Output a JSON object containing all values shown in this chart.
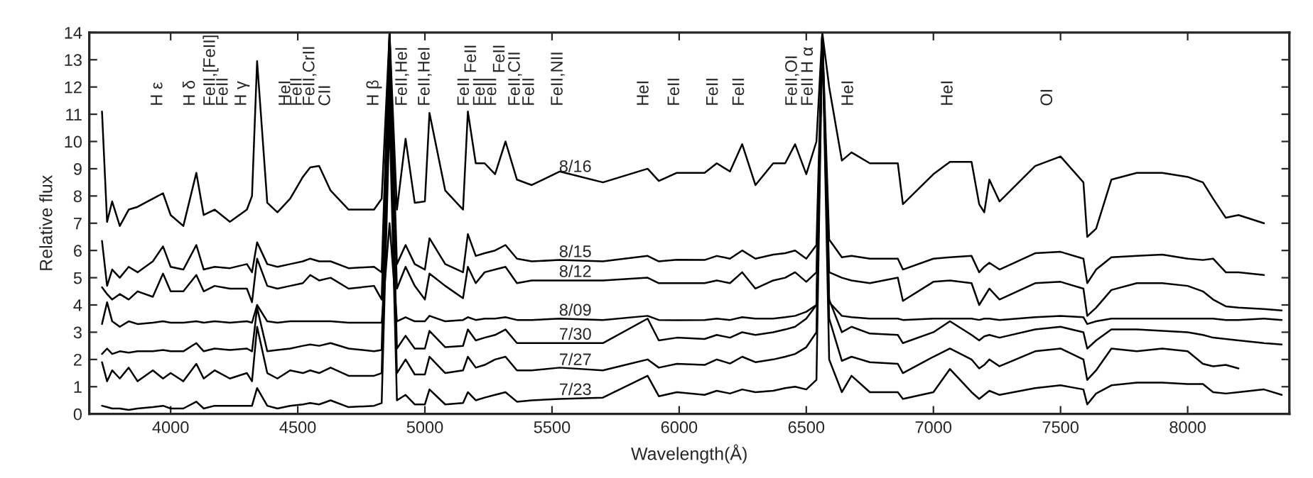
{
  "chart_data": {
    "type": "line",
    "xlabel": "Wavelength(Å)",
    "ylabel": "Relative flux",
    "x": [
      3730,
      3750,
      3770,
      3800,
      3835,
      3870,
      3930,
      3970,
      4000,
      4050,
      4101,
      4130,
      4173,
      4233,
      4300,
      4320,
      4340,
      4380,
      4420,
      4470,
      4520,
      4549,
      4584,
      4629,
      4700,
      4800,
      4830,
      4861,
      4890,
      4924,
      4960,
      5000,
      5018,
      5080,
      5150,
      5169,
      5200,
      5235,
      5276,
      5317,
      5362,
      5420,
      5530,
      5700,
      5876,
      5920,
      5991,
      6100,
      6148,
      6200,
      6248,
      6300,
      6370,
      6417,
      6456,
      6500,
      6540,
      6563,
      6590,
      6640,
      6678,
      6750,
      6860,
      6880,
      7000,
      7065,
      7150,
      7180,
      7200,
      7220,
      7260,
      7400,
      7500,
      7590,
      7605,
      7640,
      7700,
      7800,
      7900,
      8000,
      8060,
      8100,
      8150,
      8200,
      8300,
      8370
    ],
    "xlim": [
      3680,
      8400
    ],
    "ylim": [
      0,
      14
    ],
    "xticks": [
      4000,
      4500,
      5000,
      5500,
      6000,
      6500,
      7000,
      7500,
      8000
    ],
    "yticks": [
      0,
      1,
      2,
      3,
      4,
      5,
      6,
      7,
      8,
      9,
      10,
      11,
      12,
      13,
      14
    ],
    "grid": false,
    "line_style": "solid",
    "marker": "none",
    "series": [
      {
        "name": "7/23",
        "color": "#000000",
        "values": [
          0.3,
          0.25,
          0.2,
          0.2,
          0.15,
          0.2,
          0.25,
          0.3,
          0.2,
          0.2,
          0.45,
          0.2,
          0.3,
          0.3,
          0.3,
          0.3,
          0.95,
          0.3,
          0.2,
          0.3,
          0.35,
          0.4,
          0.35,
          0.5,
          0.25,
          0.3,
          0.4,
          11,
          0.5,
          0.7,
          0.35,
          0.35,
          0.9,
          0.35,
          0.4,
          0.8,
          0.5,
          0.6,
          0.7,
          0.8,
          0.45,
          0.5,
          0.55,
          0.6,
          1.4,
          0.65,
          0.8,
          0.7,
          0.85,
          0.75,
          0.9,
          0.8,
          0.85,
          0.95,
          1.0,
          0.9,
          1.25,
          14,
          2,
          0.8,
          1.4,
          0.8,
          0.8,
          0.55,
          0.8,
          1.65,
          0.8,
          0.55,
          0.7,
          0.85,
          0.7,
          0.95,
          1.05,
          0.9,
          0.35,
          0.75,
          1.05,
          1.15,
          1.15,
          1.1,
          1.1,
          0.8,
          0.75,
          0.8,
          0.9,
          0.7
        ]
      },
      {
        "name": "7/27",
        "color": "#000000",
        "values": [
          1.9,
          1.2,
          1.6,
          1.3,
          1.7,
          1.2,
          1.6,
          1.3,
          1.5,
          1.2,
          1.84,
          1.3,
          1.6,
          1.3,
          1.5,
          1.2,
          3.2,
          1.5,
          1.3,
          1.6,
          1.5,
          1.6,
          1.5,
          1.7,
          1.4,
          1.4,
          1.5,
          12,
          1.5,
          2.0,
          1.45,
          1.45,
          2.1,
          1.5,
          1.6,
          2.1,
          1.7,
          1.8,
          2.0,
          2.1,
          1.6,
          1.6,
          1.7,
          1.6,
          2.0,
          1.7,
          1.84,
          1.8,
          2.0,
          1.85,
          2.1,
          1.9,
          2.0,
          2.1,
          2.2,
          2.45,
          3.0,
          14,
          3.5,
          1.95,
          2.1,
          1.9,
          1.84,
          1.5,
          2.1,
          2.4,
          2.0,
          1.67,
          1.8,
          2.0,
          1.75,
          2.3,
          2.4,
          2.0,
          1.25,
          1.6,
          2.4,
          2.3,
          2.4,
          2.3,
          1.84,
          1.75,
          1.8,
          1.67,
          null,
          null
        ]
      },
      {
        "name": "7/30",
        "color": "#000000",
        "values": [
          2.2,
          2.4,
          2.2,
          2.3,
          2.25,
          2.3,
          2.3,
          2.35,
          2.3,
          2.3,
          2.6,
          2.3,
          2.4,
          2.35,
          2.4,
          2.3,
          3.9,
          2.3,
          2.35,
          2.4,
          2.5,
          2.55,
          2.5,
          2.6,
          2.4,
          2.3,
          2.35,
          13,
          2.4,
          2.87,
          2.4,
          2.4,
          3.05,
          2.45,
          2.5,
          3.1,
          2.7,
          2.8,
          2.9,
          3.1,
          2.6,
          2.6,
          2.6,
          2.6,
          3.5,
          2.7,
          2.8,
          2.75,
          2.9,
          2.8,
          3.0,
          2.9,
          3.0,
          3.1,
          3.2,
          3.5,
          4.0,
          14,
          4.2,
          3.0,
          3.2,
          2.95,
          2.9,
          2.6,
          3.0,
          3.4,
          2.9,
          2.7,
          2.85,
          2.9,
          2.8,
          3.1,
          3.2,
          3.0,
          2.4,
          2.7,
          3.1,
          3.1,
          3.05,
          3.0,
          2.9,
          2.8,
          2.75,
          2.7,
          2.6,
          2.55
        ]
      },
      {
        "name": "8/09",
        "color": "#000000",
        "values": [
          3.3,
          4.1,
          3.4,
          3.2,
          3.4,
          3.3,
          3.35,
          3.4,
          3.35,
          3.35,
          3.4,
          3.35,
          3.4,
          3.35,
          3.4,
          3.35,
          4.0,
          3.4,
          3.35,
          3.4,
          3.4,
          3.4,
          3.4,
          3.4,
          3.35,
          3.35,
          3.35,
          7,
          3.4,
          3.55,
          3.4,
          3.4,
          3.6,
          3.4,
          3.45,
          3.55,
          3.45,
          3.5,
          3.5,
          3.55,
          3.45,
          3.45,
          3.5,
          3.45,
          3.6,
          3.45,
          3.44,
          3.45,
          3.5,
          3.45,
          3.55,
          3.5,
          3.5,
          3.55,
          3.6,
          3.75,
          4.0,
          14,
          4.1,
          3.6,
          3.55,
          3.5,
          3.5,
          3.45,
          3.5,
          3.5,
          3.5,
          3.45,
          3.5,
          3.5,
          3.45,
          3.55,
          3.6,
          3.55,
          3.3,
          3.4,
          3.5,
          3.5,
          3.5,
          3.5,
          3.5,
          3.5,
          3.45,
          3.45,
          3.5,
          3.45
        ]
      },
      {
        "name": "8/12",
        "color": "#000000",
        "values": [
          4.65,
          4.4,
          4.2,
          4.4,
          4.2,
          4.5,
          4.3,
          5.15,
          4.5,
          4.5,
          5.1,
          4.5,
          4.7,
          4.6,
          4.6,
          4.1,
          5.7,
          4.7,
          4.6,
          4.7,
          4.8,
          5.1,
          4.9,
          5.0,
          4.6,
          4.7,
          4.2,
          14,
          4.6,
          5.4,
          4.7,
          4.2,
          5.15,
          4.7,
          4.25,
          5.4,
          4.8,
          5.2,
          5.3,
          5.4,
          4.8,
          4.9,
          4.9,
          4.9,
          5.0,
          4.8,
          4.8,
          4.8,
          4.9,
          4.8,
          5.2,
          4.6,
          4.9,
          5.0,
          5.2,
          4.85,
          5.2,
          14,
          5.2,
          5.0,
          4.9,
          4.8,
          5.0,
          4.15,
          4.85,
          4.9,
          4.8,
          4.0,
          4.3,
          4.6,
          4.2,
          4.8,
          4.85,
          4.6,
          3.6,
          3.9,
          4.55,
          4.8,
          4.8,
          4.7,
          4.5,
          4.2,
          3.95,
          3.9,
          3.85,
          3.8
        ]
      },
      {
        "name": "8/15",
        "color": "#000000",
        "values": [
          6.35,
          4.7,
          5.3,
          5.0,
          5.4,
          5.2,
          5.6,
          6.15,
          5.4,
          5.3,
          6.2,
          5.3,
          5.4,
          5.35,
          5.5,
          5.2,
          6.3,
          5.5,
          5.4,
          5.5,
          5.6,
          5.7,
          5.6,
          5.6,
          5.35,
          5.4,
          5.2,
          14,
          5.5,
          6.2,
          5.5,
          5.3,
          6.45,
          5.5,
          5.2,
          6.6,
          5.8,
          5.9,
          6.0,
          6.2,
          5.7,
          5.6,
          5.65,
          5.6,
          5.8,
          5.6,
          5.66,
          5.65,
          5.8,
          5.7,
          6.0,
          5.7,
          5.85,
          5.9,
          6.0,
          5.7,
          6.2,
          14,
          6.4,
          5.75,
          5.8,
          5.7,
          5.7,
          5.3,
          5.7,
          5.75,
          5.8,
          5.2,
          5.4,
          5.55,
          5.3,
          5.9,
          5.95,
          5.7,
          4.8,
          5.3,
          5.75,
          5.8,
          5.85,
          5.7,
          5.65,
          5.7,
          5.2,
          5.2,
          5.1,
          null
        ]
      },
      {
        "name": "8/16",
        "color": "#000000",
        "values": [
          11.1,
          7.05,
          7.8,
          6.9,
          7.5,
          7.6,
          7.9,
          8.1,
          7.3,
          6.9,
          8.85,
          7.3,
          7.5,
          7.05,
          7.5,
          8.0,
          12.95,
          7.75,
          7.4,
          7.9,
          8.7,
          9.05,
          9.1,
          8.2,
          7.5,
          7.5,
          7.9,
          14,
          7.5,
          10.1,
          7.75,
          7.8,
          11.05,
          8.2,
          7.5,
          11.1,
          9.2,
          9.2,
          8.8,
          10.0,
          8.6,
          8.4,
          8.9,
          8.5,
          9.0,
          8.55,
          8.85,
          8.85,
          9.2,
          8.9,
          9.9,
          8.4,
          9.2,
          9.2,
          9.9,
          8.8,
          10.0,
          14,
          12,
          9.3,
          9.6,
          9.2,
          9.2,
          7.7,
          8.8,
          9.25,
          9.25,
          7.7,
          7.4,
          8.6,
          7.8,
          9.1,
          9.45,
          8.5,
          6.5,
          6.8,
          8.6,
          8.85,
          8.85,
          8.7,
          8.5,
          7.9,
          7.2,
          7.3,
          7.0,
          null
        ]
      }
    ],
    "annotations": [
      "H ε",
      "H δ",
      "FeII,[FeII]",
      "FeII",
      "H γ",
      "HeI",
      "FeII",
      "FeII,CrII",
      "CII",
      "H β",
      "FeII,HeI",
      "FeII,HeI",
      "FeII",
      "FeII",
      "FeII",
      "FeII",
      "FeII",
      "FeII,CII",
      "FeII",
      "FeII,NII",
      "HeI",
      "FeII",
      "FeII",
      "FeII",
      "FeII,OI",
      "FeII",
      "H α",
      "HeI",
      "HeI",
      "OI"
    ]
  }
}
